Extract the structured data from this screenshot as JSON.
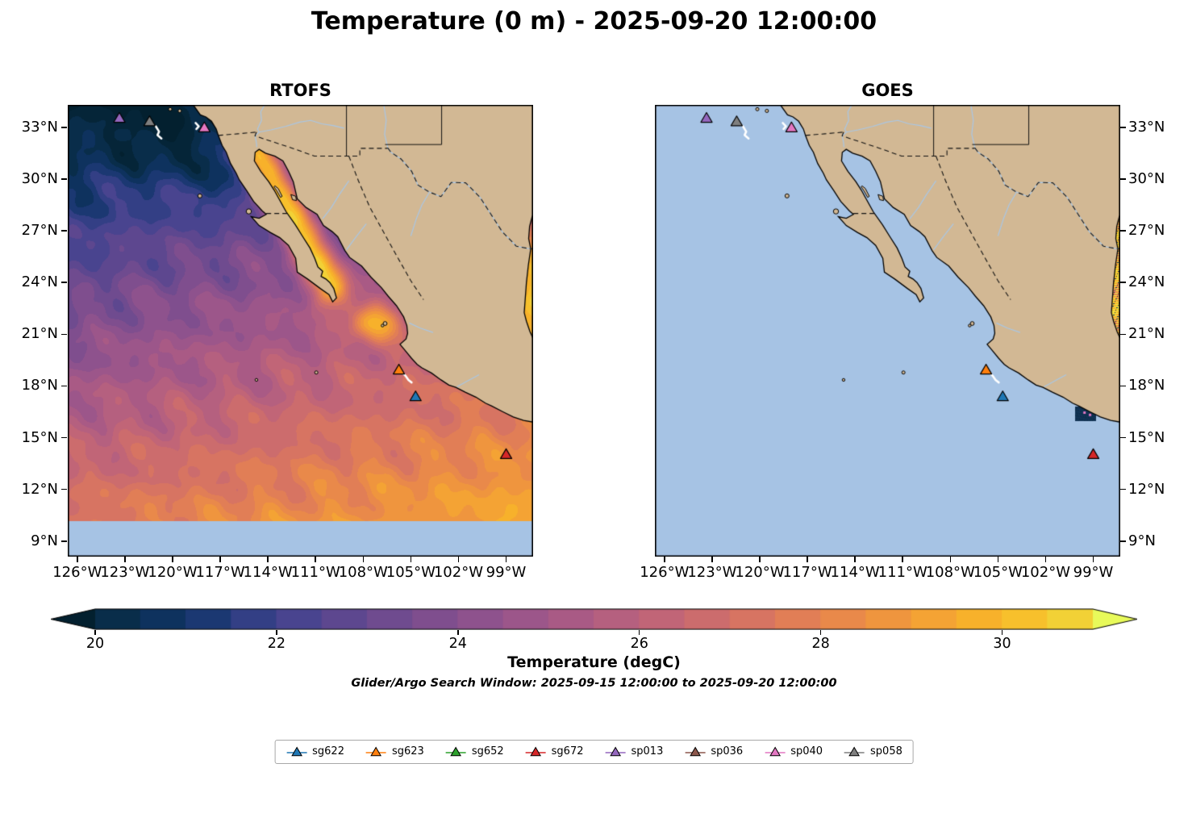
{
  "figure": {
    "title": "Temperature (0 m) - 2025-09-20 12:00:00",
    "colorbar": {
      "label": "Temperature (degC)",
      "ticks": [
        20,
        22,
        24,
        26,
        28,
        30
      ],
      "vmin": 20,
      "vmax": 31
    },
    "subtitle": "Glider/Argo Search Window: 2025-09-15 12:00:00 to 2025-09-20 12:00:00"
  },
  "chart_data": {
    "type": "heatmap",
    "title": "Temperature (0 m) - 2025-09-20 12:00:00",
    "variable": "Temperature (degC)",
    "depth_m": 0,
    "valid_time": "2025-09-20 12:00:00",
    "panels": [
      {
        "name": "RTOFS",
        "coverage": "full model SST field"
      },
      {
        "name": "GOES",
        "coverage": "mostly missing (light-blue no-data); valid pixels only along eastern Gulf-of-Mexico strip and a small dark patch off Acapulco"
      }
    ],
    "extent": {
      "lon_min": -126.6,
      "lon_max": -97.3,
      "lat_min": 8.1,
      "lat_max": 34.3
    },
    "xticks": [
      {
        "label": "126°W",
        "value": -126
      },
      {
        "label": "123°W",
        "value": -123
      },
      {
        "label": "120°W",
        "value": -120
      },
      {
        "label": "117°W",
        "value": -117
      },
      {
        "label": "114°W",
        "value": -114
      },
      {
        "label": "111°W",
        "value": -111
      },
      {
        "label": "108°W",
        "value": -108
      },
      {
        "label": "105°W",
        "value": -105
      },
      {
        "label": "102°W",
        "value": -102
      },
      {
        "label": "99°W",
        "value": -99
      }
    ],
    "yticks": [
      {
        "label": "33°N",
        "value": 33
      },
      {
        "label": "30°N",
        "value": 30
      },
      {
        "label": "27°N",
        "value": 27
      },
      {
        "label": "24°N",
        "value": 24
      },
      {
        "label": "21°N",
        "value": 21
      },
      {
        "label": "18°N",
        "value": 18
      },
      {
        "label": "15°N",
        "value": 15
      },
      {
        "label": "12°N",
        "value": 12
      },
      {
        "label": "9°N",
        "value": 9
      }
    ],
    "colormap": {
      "name": "thermal-like",
      "domain": [
        19.5,
        31.5
      ],
      "stops": [
        [
          0.0,
          "#03202f"
        ],
        [
          0.05,
          "#072b44"
        ],
        [
          0.13,
          "#12366b"
        ],
        [
          0.21,
          "#40428f"
        ],
        [
          0.29,
          "#66498f"
        ],
        [
          0.375,
          "#87508e"
        ],
        [
          0.46,
          "#a35888"
        ],
        [
          0.54,
          "#bb627c"
        ],
        [
          0.625,
          "#d26f68"
        ],
        [
          0.71,
          "#e68350"
        ],
        [
          0.79,
          "#f29b38"
        ],
        [
          0.875,
          "#f9b827"
        ],
        [
          0.96,
          "#f0da3c"
        ],
        [
          1.0,
          "#e8fa5a"
        ]
      ]
    },
    "ocean_nodata_color": "#a6c3e4",
    "land_color": "#d2b894",
    "river_color": "#a9c7e6",
    "sst_samples_degC": [
      {
        "lon": -126,
        "lat": 33,
        "rtofs": 19.5,
        "goes": null
      },
      {
        "lon": -122,
        "lat": 31,
        "goes": null,
        "rtofs": 20.5
      },
      {
        "lon": -118,
        "lat": 30,
        "rtofs": 21.5,
        "goes": null
      },
      {
        "lon": -124,
        "lat": 27,
        "rtofs": 22.0,
        "goes": null
      },
      {
        "lon": -120,
        "lat": 25,
        "rtofs": 23.0,
        "goes": null
      },
      {
        "lon": -125,
        "lat": 21,
        "rtofs": 24.5,
        "goes": null
      },
      {
        "lon": -122,
        "lat": 18,
        "rtofs": 25.5,
        "goes": null
      },
      {
        "lon": -125,
        "lat": 13,
        "rtofs": 26.5,
        "goes": null
      },
      {
        "lon": -118,
        "lat": 14,
        "rtofs": 27.0,
        "goes": null
      },
      {
        "lon": -112,
        "lat": 20,
        "rtofs": 27.5,
        "goes": null
      },
      {
        "lon": -113,
        "lat": 30,
        "rtofs": 30.5,
        "goes": null,
        "note": "Gulf of California"
      },
      {
        "lon": -111.5,
        "lat": 26,
        "rtofs": 30.0,
        "goes": null
      },
      {
        "lon": -108,
        "lat": 23,
        "rtofs": 28.5,
        "goes": null
      },
      {
        "lon": -105,
        "lat": 19,
        "rtofs": 29.0,
        "goes": null
      },
      {
        "lon": -101,
        "lat": 15,
        "rtofs": 28.5,
        "goes": null
      },
      {
        "lon": -97.6,
        "lat": 23,
        "rtofs": 30.0,
        "goes": 29.5,
        "note": "Gulf of Mexico strip"
      },
      {
        "lon": -99.4,
        "lat": 16.3,
        "rtofs": 28.5,
        "goes": 20.5,
        "note": "dark GOES patch off Acapulco"
      }
    ],
    "markers": [
      {
        "id": "sg622",
        "color": "#1f77b4",
        "on_map": true,
        "lon": -104.7,
        "lat": 17.4
      },
      {
        "id": "sg623",
        "color": "#ff7f0e",
        "on_map": true,
        "lon": -105.75,
        "lat": 18.95
      },
      {
        "id": "sg652",
        "color": "#2ca02c",
        "on_map": false,
        "lon": null,
        "lat": null
      },
      {
        "id": "sg672",
        "color": "#d62728",
        "on_map": true,
        "lon": -99.0,
        "lat": 14.05
      },
      {
        "id": "sp013",
        "color": "#9467bd",
        "on_map": true,
        "lon": -123.35,
        "lat": 33.55
      },
      {
        "id": "sp036",
        "color": "#8c564b",
        "on_map": false,
        "lon": null,
        "lat": null
      },
      {
        "id": "sp040",
        "color": "#e377c2",
        "on_map": true,
        "lon": -118.0,
        "lat": 33.0
      },
      {
        "id": "sp058",
        "color": "#7f7f7f",
        "on_map": true,
        "lon": -121.45,
        "lat": 33.35
      }
    ],
    "tracks_white": [
      [
        [
          -121.05,
          33.05
        ],
        [
          -120.85,
          32.75
        ],
        [
          -120.95,
          32.55
        ],
        [
          -120.7,
          32.35
        ]
      ],
      [
        [
          -118.55,
          33.25
        ],
        [
          -118.35,
          33.05
        ],
        [
          -118.5,
          32.9
        ]
      ],
      [
        [
          -105.55,
          18.8
        ],
        [
          -105.3,
          18.55
        ],
        [
          -105.15,
          18.35
        ],
        [
          -104.95,
          18.2
        ]
      ]
    ],
    "render_field": {
      "base": {
        "t0": 20,
        "lat_ref": 33,
        "lat_span": 23,
        "lat_amp": 7.5,
        "lon_amp": 3.2,
        "lon_damp": 0.35
      },
      "wiggle_amps": [
        0.3,
        0.25,
        0.25,
        0.2
      ],
      "cold_blobs": [
        {
          "lon": -120.5,
          "lat": 32.3,
          "slon": 3.2,
          "slat": 2.2,
          "amp": 1.3
        },
        {
          "lon": -116.8,
          "lat": 30.3,
          "slon": 1.8,
          "slat": 2.6,
          "amp": 1.1
        }
      ],
      "warm_blobs": [
        {
          "lon": -97.0,
          "lat": 23.5,
          "slon": 2.0,
          "slat": 4.5,
          "amp": 5.0
        },
        {
          "lon": -107.3,
          "lat": 21.7,
          "slon": 1.6,
          "slat": 1.2,
          "amp": 4.0
        }
      ],
      "gulf_california": {
        "a": [
          -114.6,
          31.3
        ],
        "b": [
          -110.3,
          24.3
        ],
        "amp": 8.3,
        "taper": 0.3,
        "sigma": 1.15
      },
      "quantize": 0.5,
      "no_data_south_of_lat": 10.15
    },
    "goes_field": {
      "strip_lon_min": -98.15,
      "strip_lat": [
        20.55,
        28.2
      ],
      "dark_patch": {
        "lon": [
          -100.15,
          -98.8
        ],
        "lat": [
          15.95,
          16.8
        ],
        "color": "#0c2a45",
        "color2": "#123558"
      },
      "pink_specks": [
        [
          -99.55,
          16.45
        ],
        [
          -99.2,
          16.32
        ]
      ],
      "speck_color": "#e377c2"
    }
  }
}
